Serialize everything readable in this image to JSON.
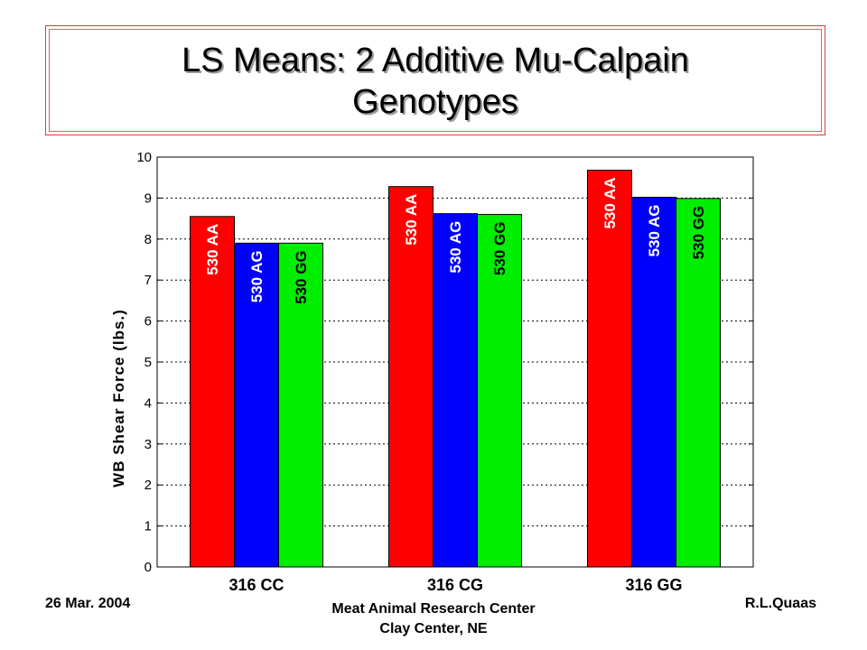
{
  "title": {
    "line1": "LS Means: 2 Additive Mu-Calpain",
    "line2": "Genotypes"
  },
  "footer": {
    "date": "26 Mar. 2004",
    "center_line1": "Meat Animal Research Center",
    "center_line2": "Clay Center, NE",
    "author": "R.L.Quaas"
  },
  "chart_data": {
    "type": "bar",
    "categories": [
      "316 CC",
      "316 CG",
      "316 GG"
    ],
    "series": [
      {
        "name": "530 AA",
        "color": "#ff0000",
        "label_color": "#ffffff",
        "values": [
          8.55,
          9.28,
          9.68
        ]
      },
      {
        "name": "530 AG",
        "color": "#0000ff",
        "label_color": "#ffffff",
        "values": [
          7.9,
          8.62,
          9.02
        ]
      },
      {
        "name": "530 GG",
        "color": "#00ee00",
        "label_color": "#000000",
        "values": [
          7.9,
          8.6,
          8.99
        ]
      }
    ],
    "ylabel": "WB Shear Force (lbs.)",
    "xlabel": "",
    "ylim": [
      0,
      10
    ],
    "yticks": [
      0,
      1,
      2,
      3,
      4,
      5,
      6,
      7,
      8,
      9,
      10
    ],
    "grid": "dotted-horizontal",
    "legend": "labels-inside-bars"
  }
}
